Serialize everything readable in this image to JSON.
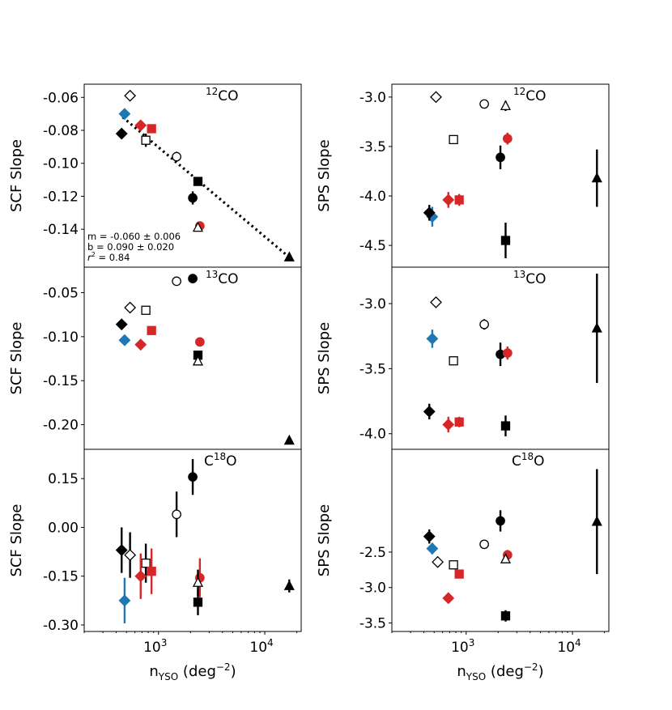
{
  "figure": {
    "xlabel": "n",
    "xlabel_sub": "YSO",
    "xlabel_unit": " (deg",
    "xlabel_exp": "−2",
    "xlabel_close": ")"
  },
  "colors": {
    "black": "#000000",
    "blue": "#1f77b4",
    "red": "#d62728"
  },
  "legend_note": "filled = black/blue/red symbols; open symbols are white with black edge",
  "chart_data": [
    {
      "id": "scf-12co",
      "type": "scatter",
      "panel": "top-left",
      "title_sup": "12",
      "title_main": "CO",
      "ylabel": "SCF Slope",
      "xlim": [
        200,
        22000
      ],
      "xscale": "log",
      "ylim": [
        -0.163,
        -0.052
      ],
      "yticks": [
        -0.06,
        -0.08,
        -0.1,
        -0.12,
        -0.14
      ],
      "ytick_labels": [
        "-0.06",
        "-0.08",
        "-0.10",
        "-0.12",
        "-0.14"
      ],
      "fit": {
        "x": [
          460,
          17000
        ],
        "y": [
          -0.072,
          -0.157
        ],
        "m_text": "m = -0.060 ± 0.006",
        "b_text": "b = 0.090 ± 0.020",
        "r2_label": "r",
        "r2_value": " =  0.84"
      },
      "points": [
        {
          "x": 540,
          "y": -0.059,
          "err": 0,
          "shape": "diamond",
          "color": "black",
          "open": true
        },
        {
          "x": 480,
          "y": -0.07,
          "err": 0,
          "shape": "diamond",
          "color": "blue",
          "open": false
        },
        {
          "x": 450,
          "y": -0.082,
          "err": 0,
          "shape": "diamond",
          "color": "black",
          "open": false
        },
        {
          "x": 680,
          "y": -0.077,
          "err": 0,
          "shape": "diamond",
          "color": "red",
          "open": false
        },
        {
          "x": 860,
          "y": -0.079,
          "err": 0,
          "shape": "square",
          "color": "red",
          "open": false
        },
        {
          "x": 760,
          "y": -0.086,
          "err": 0.004,
          "shape": "square",
          "color": "black",
          "open": true
        },
        {
          "x": 1480,
          "y": -0.096,
          "err": 0.003,
          "shape": "circle",
          "color": "black",
          "open": true
        },
        {
          "x": 2350,
          "y": -0.111,
          "err": 0,
          "shape": "square",
          "color": "black",
          "open": false
        },
        {
          "x": 2100,
          "y": -0.121,
          "err": 0.004,
          "shape": "circle",
          "color": "black",
          "open": false
        },
        {
          "x": 2450,
          "y": -0.138,
          "err": 0,
          "shape": "circle",
          "color": "red",
          "open": false
        },
        {
          "x": 2350,
          "y": -0.139,
          "err": 0,
          "shape": "triangle",
          "color": "black",
          "open": true
        },
        {
          "x": 17000,
          "y": -0.157,
          "err": 0,
          "shape": "triangle",
          "color": "black",
          "open": false
        }
      ]
    },
    {
      "id": "sps-12co",
      "type": "scatter",
      "panel": "top-right",
      "title_sup": "12",
      "title_main": "CO",
      "ylabel": "SPS Slope",
      "xlim": [
        200,
        22000
      ],
      "xscale": "log",
      "ylim": [
        -4.72,
        -2.87
      ],
      "yticks": [
        -3.0,
        -3.5,
        -4.0,
        -4.5
      ],
      "ytick_labels": [
        "-3.0",
        "-3.5",
        "-4.0",
        "-4.5"
      ],
      "points": [
        {
          "x": 520,
          "y": -3.0,
          "err": 0,
          "shape": "diamond",
          "color": "black",
          "open": true
        },
        {
          "x": 1480,
          "y": -3.07,
          "err": 0,
          "shape": "circle",
          "color": "black",
          "open": true
        },
        {
          "x": 2350,
          "y": -3.09,
          "err": 0.05,
          "shape": "triangle",
          "color": "black",
          "open": true
        },
        {
          "x": 760,
          "y": -3.43,
          "err": 0,
          "shape": "square",
          "color": "black",
          "open": true
        },
        {
          "x": 2450,
          "y": -3.42,
          "err": 0.06,
          "shape": "circle",
          "color": "red",
          "open": false
        },
        {
          "x": 2100,
          "y": -3.61,
          "err": 0.12,
          "shape": "circle",
          "color": "black",
          "open": false
        },
        {
          "x": 17000,
          "y": -3.82,
          "err": 0.29,
          "shape": "triangle",
          "color": "black",
          "open": false
        },
        {
          "x": 680,
          "y": -4.04,
          "err": 0.08,
          "shape": "diamond",
          "color": "red",
          "open": false
        },
        {
          "x": 860,
          "y": -4.04,
          "err": 0.06,
          "shape": "square",
          "color": "red",
          "open": false
        },
        {
          "x": 480,
          "y": -4.21,
          "err": 0.1,
          "shape": "diamond",
          "color": "blue",
          "open": false
        },
        {
          "x": 450,
          "y": -4.17,
          "err": 0.08,
          "shape": "diamond",
          "color": "black",
          "open": false
        },
        {
          "x": 2350,
          "y": -4.45,
          "err": 0.18,
          "shape": "square",
          "color": "black",
          "open": false
        }
      ]
    },
    {
      "id": "scf-13co",
      "type": "scatter",
      "panel": "middle-left",
      "title_sup": "13",
      "title_main": "CO",
      "ylabel": "SCF Slope",
      "xlim": [
        200,
        22000
      ],
      "xscale": "log",
      "ylim": [
        -0.228,
        -0.021
      ],
      "yticks": [
        -0.05,
        -0.1,
        -0.15,
        -0.2
      ],
      "ytick_labels": [
        "-0.05",
        "-0.10",
        "-0.15",
        "-0.20"
      ],
      "points": [
        {
          "x": 1480,
          "y": -0.037,
          "err": 0,
          "shape": "circle",
          "color": "black",
          "open": true
        },
        {
          "x": 2100,
          "y": -0.034,
          "err": 0.003,
          "shape": "circle",
          "color": "black",
          "open": false
        },
        {
          "x": 540,
          "y": -0.067,
          "err": 0,
          "shape": "diamond",
          "color": "black",
          "open": true
        },
        {
          "x": 760,
          "y": -0.07,
          "err": 0,
          "shape": "square",
          "color": "black",
          "open": true
        },
        {
          "x": 450,
          "y": -0.086,
          "err": 0,
          "shape": "diamond",
          "color": "black",
          "open": false
        },
        {
          "x": 860,
          "y": -0.093,
          "err": 0,
          "shape": "square",
          "color": "red",
          "open": false
        },
        {
          "x": 480,
          "y": -0.104,
          "err": 0,
          "shape": "diamond",
          "color": "blue",
          "open": false
        },
        {
          "x": 680,
          "y": -0.109,
          "err": 0,
          "shape": "diamond",
          "color": "red",
          "open": false
        },
        {
          "x": 2450,
          "y": -0.106,
          "err": 0,
          "shape": "circle",
          "color": "red",
          "open": false
        },
        {
          "x": 2350,
          "y": -0.121,
          "err": 0,
          "shape": "square",
          "color": "black",
          "open": false
        },
        {
          "x": 2350,
          "y": -0.128,
          "err": 0,
          "shape": "triangle",
          "color": "black",
          "open": true
        },
        {
          "x": 17000,
          "y": -0.218,
          "err": 0,
          "shape": "triangle",
          "color": "black",
          "open": false
        }
      ]
    },
    {
      "id": "sps-13co",
      "type": "scatter",
      "panel": "middle-right",
      "title_sup": "13",
      "title_main": "CO",
      "ylabel": "SPS Slope",
      "xlim": [
        200,
        22000
      ],
      "xscale": "log",
      "ylim": [
        -4.12,
        -2.72
      ],
      "yticks": [
        -3.0,
        -3.5,
        -4.0
      ],
      "ytick_labels": [
        "-3.0",
        "-3.5",
        "-4.0"
      ],
      "points": [
        {
          "x": 520,
          "y": -2.99,
          "err": 0,
          "shape": "diamond",
          "color": "black",
          "open": true
        },
        {
          "x": 1480,
          "y": -3.16,
          "err": 0.04,
          "shape": "circle",
          "color": "black",
          "open": true
        },
        {
          "x": 17000,
          "y": -3.19,
          "err": 0.42,
          "shape": "triangle",
          "color": "black",
          "open": false
        },
        {
          "x": 480,
          "y": -3.27,
          "err": 0.07,
          "shape": "diamond",
          "color": "blue",
          "open": false
        },
        {
          "x": 2100,
          "y": -3.39,
          "err": 0.09,
          "shape": "circle",
          "color": "black",
          "open": false
        },
        {
          "x": 2450,
          "y": -3.38,
          "err": 0.05,
          "shape": "circle",
          "color": "red",
          "open": false
        },
        {
          "x": 760,
          "y": -3.44,
          "err": 0,
          "shape": "square",
          "color": "black",
          "open": true
        },
        {
          "x": 450,
          "y": -3.83,
          "err": 0.06,
          "shape": "diamond",
          "color": "black",
          "open": false
        },
        {
          "x": 680,
          "y": -3.93,
          "err": 0.06,
          "shape": "diamond",
          "color": "red",
          "open": false
        },
        {
          "x": 860,
          "y": -3.91,
          "err": 0.04,
          "shape": "square",
          "color": "red",
          "open": false
        },
        {
          "x": 2350,
          "y": -3.94,
          "err": 0.08,
          "shape": "square",
          "color": "black",
          "open": false
        }
      ]
    },
    {
      "id": "scf-c18o",
      "type": "scatter",
      "panel": "bottom-left",
      "title_main": "C",
      "title_sup": "18",
      "title_tail": "O",
      "ylabel": "SCF Slope",
      "xlim": [
        200,
        22000
      ],
      "xscale": "log",
      "ylim": [
        -0.32,
        0.24
      ],
      "yticks": [
        0.15,
        0.0,
        -0.15,
        -0.3
      ],
      "ytick_labels": [
        "0.15",
        "0.00",
        "-0.15",
        "-0.30"
      ],
      "points": [
        {
          "x": 2100,
          "y": 0.155,
          "err": 0.055,
          "shape": "circle",
          "color": "black",
          "open": false
        },
        {
          "x": 1480,
          "y": 0.04,
          "err": 0.07,
          "shape": "circle",
          "color": "black",
          "open": true
        },
        {
          "x": 450,
          "y": -0.07,
          "err": 0.07,
          "shape": "diamond",
          "color": "black",
          "open": false
        },
        {
          "x": 540,
          "y": -0.085,
          "err": 0.07,
          "shape": "diamond",
          "color": "black",
          "open": true
        },
        {
          "x": 760,
          "y": -0.11,
          "err": 0.06,
          "shape": "square",
          "color": "black",
          "open": true
        },
        {
          "x": 680,
          "y": -0.15,
          "err": 0.07,
          "shape": "diamond",
          "color": "red",
          "open": false
        },
        {
          "x": 860,
          "y": -0.135,
          "err": 0.07,
          "shape": "square",
          "color": "red",
          "open": false
        },
        {
          "x": 2450,
          "y": -0.155,
          "err": 0.06,
          "shape": "circle",
          "color": "red",
          "open": false
        },
        {
          "x": 2350,
          "y": -0.17,
          "err": 0.04,
          "shape": "triangle",
          "color": "black",
          "open": true
        },
        {
          "x": 17000,
          "y": -0.18,
          "err": 0.02,
          "shape": "triangle",
          "color": "black",
          "open": false
        },
        {
          "x": 480,
          "y": -0.225,
          "err": 0.07,
          "shape": "diamond",
          "color": "blue",
          "open": false
        },
        {
          "x": 2350,
          "y": -0.23,
          "err": 0.04,
          "shape": "square",
          "color": "black",
          "open": false
        }
      ]
    },
    {
      "id": "sps-c18o",
      "type": "scatter",
      "panel": "bottom-right",
      "title_main": "C",
      "title_sup": "18",
      "title_tail": "O",
      "ylabel": "SPS Slope",
      "xlim": [
        200,
        22000
      ],
      "xscale": "log",
      "ylim": [
        -3.62,
        -1.05
      ],
      "yticks": [
        -2.5,
        -3.0,
        -3.5
      ],
      "ytick_labels": [
        "-2.5",
        "-3.0",
        "-3.5"
      ],
      "points": [
        {
          "x": 17000,
          "y": -2.07,
          "err": 0.74,
          "shape": "triangle",
          "color": "black",
          "open": false
        },
        {
          "x": 2100,
          "y": -2.06,
          "err": 0.15,
          "shape": "circle",
          "color": "black",
          "open": false
        },
        {
          "x": 450,
          "y": -2.28,
          "err": 0.1,
          "shape": "diamond",
          "color": "black",
          "open": false
        },
        {
          "x": 1480,
          "y": -2.39,
          "err": 0.06,
          "shape": "circle",
          "color": "black",
          "open": true
        },
        {
          "x": 480,
          "y": -2.45,
          "err": 0.08,
          "shape": "diamond",
          "color": "blue",
          "open": false
        },
        {
          "x": 2450,
          "y": -2.54,
          "err": 0.07,
          "shape": "circle",
          "color": "red",
          "open": false
        },
        {
          "x": 2350,
          "y": -2.6,
          "err": 0.04,
          "shape": "triangle",
          "color": "black",
          "open": true
        },
        {
          "x": 540,
          "y": -2.64,
          "err": 0,
          "shape": "diamond",
          "color": "black",
          "open": true
        },
        {
          "x": 760,
          "y": -2.68,
          "err": 0,
          "shape": "square",
          "color": "black",
          "open": true
        },
        {
          "x": 860,
          "y": -2.81,
          "err": 0.06,
          "shape": "square",
          "color": "red",
          "open": false
        },
        {
          "x": 680,
          "y": -3.15,
          "err": 0.06,
          "shape": "diamond",
          "color": "red",
          "open": false
        },
        {
          "x": 2350,
          "y": -3.4,
          "err": 0.08,
          "shape": "square",
          "color": "black",
          "open": false
        }
      ]
    }
  ],
  "xtick_labels": {
    "base": "10",
    "exp3": "3",
    "exp4": "4"
  }
}
